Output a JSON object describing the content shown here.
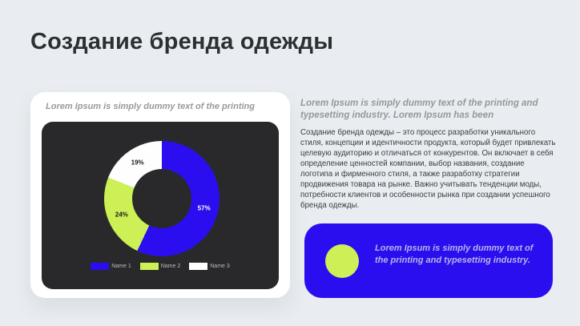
{
  "slide": {
    "title": "Создание бренда одежды",
    "background_color": "#e9edf1"
  },
  "left_card": {
    "caption": "Lorem Ipsum is simply dummy text of the printing"
  },
  "chart_data": {
    "type": "pie",
    "subtype": "donut",
    "labels": [
      "Name 1",
      "Name 2",
      "Name 3"
    ],
    "values": [
      57,
      24,
      19
    ],
    "value_labels": [
      "57%",
      "24%",
      "19%"
    ],
    "colors": [
      "#2a0ef0",
      "#ccf055",
      "#fefefe"
    ],
    "value_label_colors": [
      "#ffffff",
      "#1c1c1c",
      "#1c1c1c"
    ],
    "legend_position": "bottom",
    "panel_background": "#29292b",
    "start_angle_deg": 0,
    "direction": "clockwise"
  },
  "right_panel": {
    "heading": "Lorem Ipsum is simply dummy text of the printing and typesetting industry. Lorem Ipsum has been",
    "body": "Создание бренда одежды – это процесс разработки уникального стиля, концепции и идентичности продукта, который будет привлекать целевую аудиторию и отличаться от конкурентов. Он включает в себя определение ценностей компании, выбор названия, создание логотипа и фирменного стиля, а также разработку стратегии продвижения товара на рынке. Важно учитывать тенденции моды, потребности клиентов и особенности рынка при создании успешного бренда одежды."
  },
  "callout": {
    "text": "Lorem Ipsum is simply dummy text of the printing and typesetting industry.",
    "accent_color": "#2a0ef0",
    "circle_color": "#ccf055"
  }
}
